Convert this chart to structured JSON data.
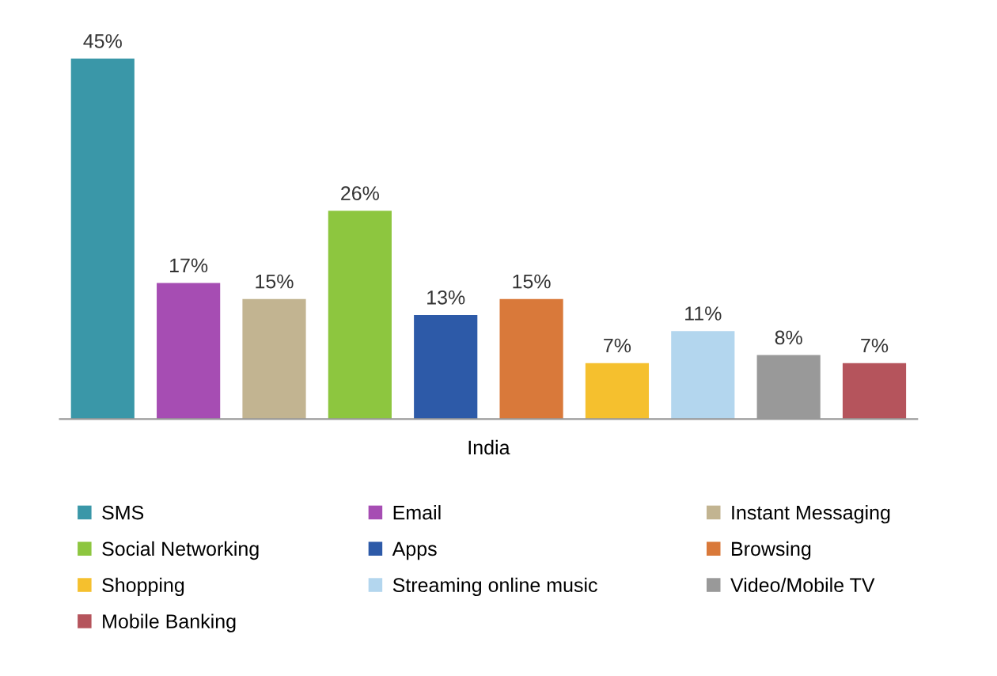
{
  "chart_data": {
    "type": "bar",
    "xlabel": "India",
    "stacked": true,
    "categories": [
      null,
      null,
      null,
      null,
      null,
      null,
      null,
      null,
      null,
      null
    ],
    "series": [
      {
        "name": "SMS",
        "color": "#3a97a8",
        "values": [
          45,
          null,
          null,
          null,
          null,
          null,
          null,
          null,
          null,
          null
        ],
        "value_labels": [
          "45%",
          null,
          null,
          null,
          null,
          null,
          null,
          null,
          null,
          null
        ]
      },
      {
        "name": "Email",
        "color": "#a64db3",
        "values": [
          null,
          17,
          null,
          null,
          null,
          null,
          null,
          null,
          null,
          null
        ],
        "value_labels": [
          null,
          "17%",
          null,
          null,
          null,
          null,
          null,
          null,
          null,
          null
        ]
      },
      {
        "name": "Instant Messaging",
        "color": "#c2b491",
        "values": [
          null,
          null,
          15,
          null,
          null,
          null,
          null,
          null,
          null,
          null
        ],
        "value_labels": [
          null,
          null,
          "15%",
          null,
          null,
          null,
          null,
          null,
          null,
          null
        ]
      },
      {
        "name": "Social Networking",
        "color": "#8dc63f",
        "values": [
          null,
          null,
          null,
          26,
          null,
          null,
          null,
          null,
          null,
          null
        ],
        "value_labels": [
          null,
          null,
          null,
          "26%",
          null,
          null,
          null,
          null,
          null,
          null
        ]
      },
      {
        "name": "Apps",
        "color": "#2d5aa8",
        "values": [
          null,
          null,
          null,
          null,
          13,
          null,
          null,
          null,
          null,
          null
        ],
        "value_labels": [
          null,
          null,
          null,
          null,
          "13%",
          null,
          null,
          null,
          null,
          null
        ]
      },
      {
        "name": "Browsing",
        "color": "#d9793a",
        "values": [
          null,
          null,
          null,
          null,
          null,
          15,
          null,
          null,
          null,
          null
        ],
        "value_labels": [
          null,
          null,
          null,
          null,
          null,
          "15%",
          null,
          null,
          null,
          null
        ]
      },
      {
        "name": "Shopping",
        "color": "#f5c02e",
        "values": [
          null,
          null,
          null,
          null,
          null,
          null,
          7,
          null,
          null,
          null
        ],
        "value_labels": [
          null,
          null,
          null,
          null,
          null,
          null,
          "7%",
          null,
          null,
          null
        ]
      },
      {
        "name": "Streaming online music",
        "color": "#b3d6ee",
        "values": [
          null,
          null,
          null,
          null,
          null,
          null,
          null,
          11,
          null,
          null
        ],
        "value_labels": [
          null,
          null,
          null,
          null,
          null,
          null,
          null,
          "11%",
          null,
          null
        ]
      },
      {
        "name": "Video/Mobile TV",
        "color": "#999999",
        "values": [
          null,
          null,
          null,
          null,
          null,
          null,
          null,
          null,
          8,
          null
        ],
        "value_labels": [
          null,
          null,
          null,
          null,
          null,
          null,
          null,
          null,
          "8%",
          null
        ]
      },
      {
        "name": "Mobile Banking",
        "color": "#b5545c",
        "values": [
          null,
          null,
          null,
          null,
          null,
          null,
          null,
          null,
          null,
          7
        ],
        "value_labels": [
          null,
          null,
          null,
          null,
          null,
          null,
          null,
          null,
          null,
          "7%"
        ]
      }
    ],
    "legend": "bottom",
    "grid": false
  }
}
